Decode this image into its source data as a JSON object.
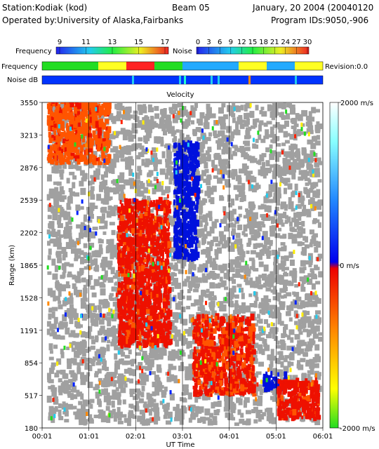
{
  "header": {
    "station": "Station:Kodiak (kod)",
    "beam": "Beam 05",
    "date": "January, 20 2004 (20040120",
    "operator": "Operated by:University of Alaska,Fairbanks",
    "program": "Program IDs:9050,-906"
  },
  "scales": {
    "frequency_label": "Frequency",
    "frequency_ticks": [
      "9",
      "11",
      "13",
      "15",
      "17"
    ],
    "noise_label": "Noise",
    "noise_ticks": [
      "0",
      "3",
      "6",
      "9",
      "12",
      "15",
      "18",
      "21",
      "24",
      "27",
      "30"
    ]
  },
  "strips": {
    "frequency_label": "Frequency",
    "noise_label": "Noise dB",
    "revision": "Revision:0.0"
  },
  "colors": {
    "ground_scatter": "#a0a0a0",
    "positive": "#ff2200",
    "negative": "#0022ff",
    "frequency_strip": [
      "#22dd22",
      "#22dd22",
      "#ffff22",
      "#ff2222",
      "#22dd22",
      "#22aaff",
      "#22aaff",
      "#ffff22",
      "#22aaff",
      "#ffff22"
    ],
    "noise_strip": "#0033ff"
  },
  "chart_data": {
    "type": "heatmap",
    "title": "Velocity",
    "xlabel": "UT Time",
    "ylabel": "Range (km)",
    "x_ticks": [
      "00:01",
      "01:01",
      "02:01",
      "03:01",
      "04:01",
      "05:01",
      "06:01"
    ],
    "y_ticks": [
      "180",
      "517",
      "854",
      "1191",
      "1528",
      "1865",
      "2202",
      "2539",
      "2876",
      "3213",
      "3550"
    ],
    "xlim": [
      0,
      6
    ],
    "ylim": [
      180,
      3550
    ],
    "colorbar": {
      "max_label": "2000 m/s",
      "zero_label": "0 m/s",
      "min_label": "-2000 m/s",
      "range": [
        -2000,
        2000
      ]
    },
    "features": [
      {
        "name": "ground-scatter-background",
        "kind": "ground",
        "time": [
          0.1,
          5.9
        ],
        "range": [
          200,
          3500
        ]
      },
      {
        "name": "early-orange-patch",
        "kind": "velocity",
        "velocity": 500,
        "time": [
          0.1,
          1.4
        ],
        "range": [
          2900,
          3550
        ]
      },
      {
        "name": "mid-red-band",
        "kind": "velocity",
        "velocity": 800,
        "time": [
          1.6,
          2.7
        ],
        "range": [
          1000,
          2500
        ]
      },
      {
        "name": "blue-column",
        "kind": "velocity",
        "velocity": -900,
        "time": [
          2.8,
          3.3
        ],
        "range": [
          1900,
          3100
        ]
      },
      {
        "name": "late-red-region",
        "kind": "velocity",
        "velocity": 700,
        "time": [
          3.2,
          4.5
        ],
        "range": [
          500,
          1300
        ]
      },
      {
        "name": "blue-blob",
        "kind": "velocity",
        "velocity": -1000,
        "time": [
          4.7,
          5.2
        ],
        "range": [
          550,
          700
        ]
      },
      {
        "name": "red-tail",
        "kind": "velocity",
        "velocity": 800,
        "time": [
          5.0,
          5.9
        ],
        "range": [
          250,
          650
        ]
      }
    ]
  }
}
